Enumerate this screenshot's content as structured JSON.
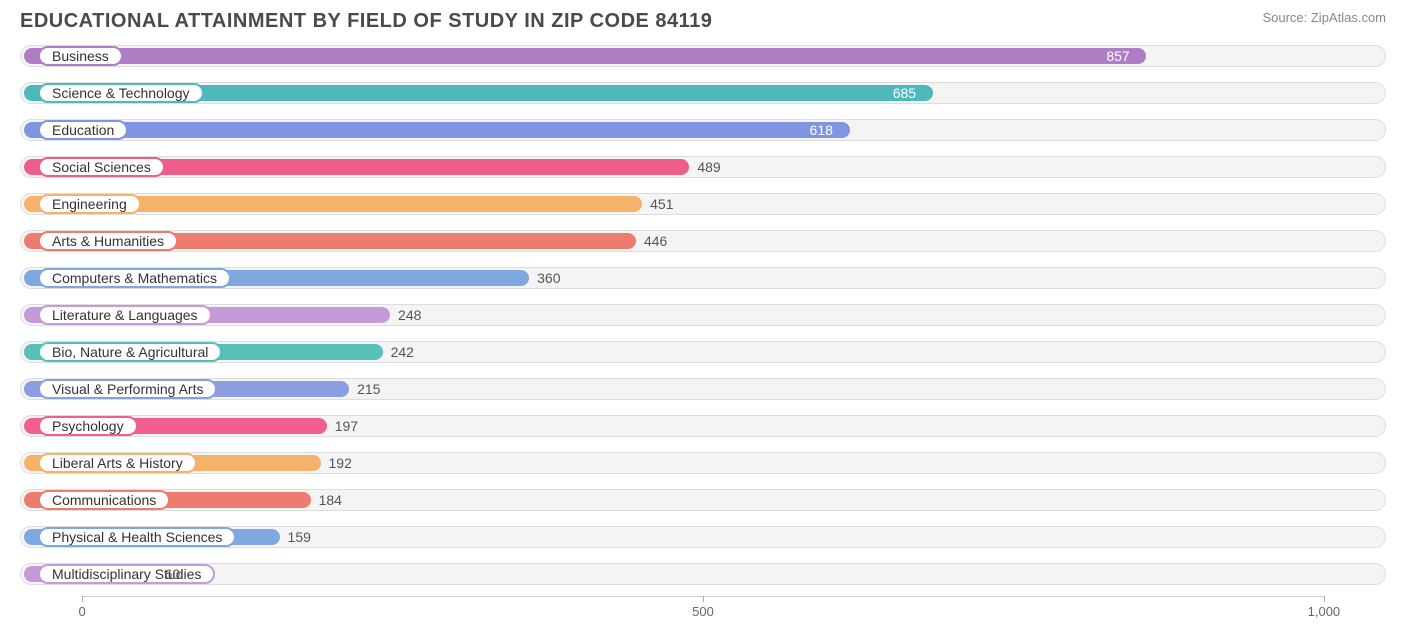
{
  "title": "EDUCATIONAL ATTAINMENT BY FIELD OF STUDY IN ZIP CODE 84119",
  "source": "Source: ZipAtlas.com",
  "chart": {
    "type": "bar-horizontal",
    "xlim": [
      -50,
      1050
    ],
    "ticks": [
      0,
      500,
      1000
    ],
    "track_bg": "#f4f4f4",
    "track_border": "#dddddd",
    "background_color": "#ffffff",
    "value_inside_threshold": 550,
    "series": [
      {
        "label": "Business",
        "value": 857,
        "color": "#b07cc6"
      },
      {
        "label": "Science & Technology",
        "value": 685,
        "color": "#4fb8b8"
      },
      {
        "label": "Education",
        "value": 618,
        "color": "#8095e0"
      },
      {
        "label": "Social Sciences",
        "value": 489,
        "color": "#ed5f8a"
      },
      {
        "label": "Engineering",
        "value": 451,
        "color": "#f4b26b"
      },
      {
        "label": "Arts & Humanities",
        "value": 446,
        "color": "#ed7b6e"
      },
      {
        "label": "Computers & Mathematics",
        "value": 360,
        "color": "#7fa8e0"
      },
      {
        "label": "Literature & Languages",
        "value": 248,
        "color": "#c49bd9"
      },
      {
        "label": "Bio, Nature & Agricultural",
        "value": 242,
        "color": "#55c0b8"
      },
      {
        "label": "Visual & Performing Arts",
        "value": 215,
        "color": "#8c9de0"
      },
      {
        "label": "Psychology",
        "value": 197,
        "color": "#f25f8f"
      },
      {
        "label": "Liberal Arts & History",
        "value": 192,
        "color": "#f4b26b"
      },
      {
        "label": "Communications",
        "value": 184,
        "color": "#ed7b6e"
      },
      {
        "label": "Physical & Health Sciences",
        "value": 159,
        "color": "#7fa8e0"
      },
      {
        "label": "Multidisciplinary Studies",
        "value": 60,
        "color": "#c49bd9"
      }
    ]
  }
}
